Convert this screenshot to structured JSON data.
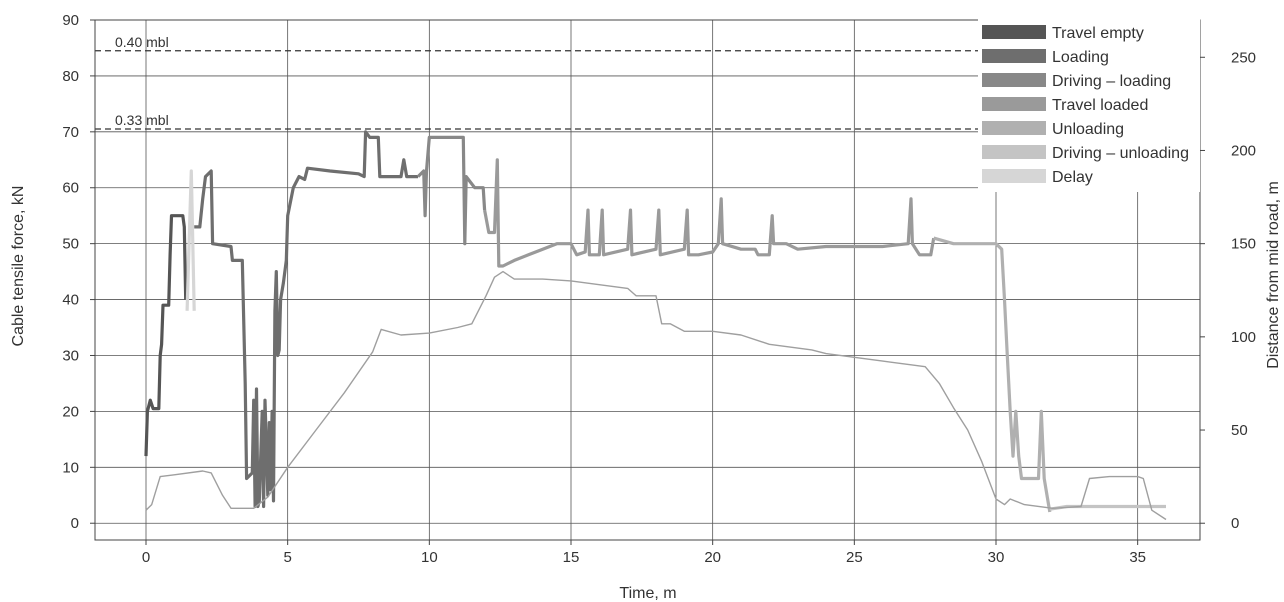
{
  "chart_data": {
    "type": "line",
    "xlabel": "Time, m",
    "ylabel": "Cable tensile force, kN",
    "y2label": "Distance from mid road, m",
    "xlim": [
      -1.8,
      37.2
    ],
    "ylim": [
      -3,
      90
    ],
    "y2lim": [
      -9,
      270
    ],
    "x_ticks": [
      0,
      5,
      10,
      15,
      20,
      25,
      30,
      35
    ],
    "y_ticks": [
      0,
      10,
      20,
      30,
      40,
      50,
      60,
      70,
      80,
      90
    ],
    "y2_ticks": [
      0,
      50,
      100,
      150,
      200,
      250
    ],
    "grid": true,
    "legend_position": "top-right",
    "reference_lines": [
      {
        "label": "0.40 mbl",
        "y": 84.5
      },
      {
        "label": "0.33 mbl",
        "y": 70.5
      }
    ],
    "series": [
      {
        "name": "Travel empty",
        "color": "#555555",
        "axis": "left",
        "points": [
          [
            0.0,
            12
          ],
          [
            0.05,
            20
          ],
          [
            0.15,
            22
          ],
          [
            0.25,
            20.5
          ],
          [
            0.45,
            20.5
          ],
          [
            0.5,
            30
          ],
          [
            0.55,
            32
          ],
          [
            0.6,
            39
          ],
          [
            0.8,
            39
          ],
          [
            0.85,
            48
          ],
          [
            0.9,
            55
          ],
          [
            1.3,
            55
          ],
          [
            1.35,
            53
          ],
          [
            1.4,
            40
          ]
        ]
      },
      {
        "name": "Loading",
        "color": "#6e6e6e",
        "axis": "left",
        "points": [
          [
            1.7,
            53
          ],
          [
            1.9,
            53
          ],
          [
            2.0,
            58
          ],
          [
            2.1,
            62
          ],
          [
            2.3,
            63
          ],
          [
            2.35,
            50
          ],
          [
            3.0,
            49.5
          ],
          [
            3.05,
            47
          ],
          [
            3.4,
            47
          ],
          [
            3.5,
            25
          ],
          [
            3.55,
            8
          ],
          [
            3.75,
            9
          ],
          [
            3.8,
            22
          ],
          [
            3.85,
            3
          ],
          [
            3.9,
            24
          ],
          [
            3.95,
            3
          ],
          [
            4.0,
            4
          ],
          [
            4.1,
            20
          ],
          [
            4.15,
            3
          ],
          [
            4.2,
            22
          ],
          [
            4.3,
            5
          ],
          [
            4.35,
            18
          ],
          [
            4.4,
            6
          ],
          [
            4.45,
            20
          ],
          [
            4.5,
            4
          ],
          [
            4.55,
            38
          ],
          [
            4.6,
            45
          ],
          [
            4.65,
            30
          ],
          [
            4.7,
            31
          ],
          [
            4.75,
            40
          ],
          [
            4.85,
            43
          ],
          [
            4.95,
            47
          ],
          [
            5.0,
            55
          ],
          [
            5.2,
            60
          ],
          [
            5.4,
            62
          ],
          [
            5.6,
            61.5
          ],
          [
            5.7,
            63.5
          ],
          [
            6.5,
            63
          ],
          [
            7.5,
            62.5
          ],
          [
            7.7,
            62
          ],
          [
            7.75,
            70
          ],
          [
            7.9,
            69
          ],
          [
            8.2,
            69
          ],
          [
            8.25,
            62
          ],
          [
            9.0,
            62
          ],
          [
            9.1,
            65
          ],
          [
            9.2,
            62
          ],
          [
            9.6,
            62
          ]
        ]
      },
      {
        "name": "Driving – loading",
        "color": "#888888",
        "axis": "left",
        "points": [
          [
            9.6,
            62
          ],
          [
            9.8,
            63
          ],
          [
            9.85,
            55
          ],
          [
            9.9,
            63
          ],
          [
            10.0,
            69
          ],
          [
            10.5,
            69
          ],
          [
            11.2,
            69
          ],
          [
            11.25,
            50
          ],
          [
            11.3,
            62
          ],
          [
            11.6,
            60
          ],
          [
            11.9,
            60
          ],
          [
            11.95,
            56
          ]
        ]
      },
      {
        "name": "Travel loaded",
        "color": "#9a9a9a",
        "axis": "left",
        "points": [
          [
            11.95,
            56
          ],
          [
            12.1,
            52
          ],
          [
            12.3,
            52
          ],
          [
            12.4,
            65
          ],
          [
            12.45,
            46
          ],
          [
            12.6,
            46
          ],
          [
            13.0,
            47
          ],
          [
            13.5,
            48
          ],
          [
            14.0,
            49
          ],
          [
            14.5,
            50
          ],
          [
            15.0,
            50
          ],
          [
            15.2,
            48
          ],
          [
            15.5,
            48.5
          ],
          [
            15.6,
            56
          ],
          [
            15.65,
            48
          ],
          [
            16.0,
            48
          ],
          [
            16.1,
            56
          ],
          [
            16.15,
            48
          ],
          [
            17.0,
            49
          ],
          [
            17.1,
            56
          ],
          [
            17.15,
            48
          ],
          [
            18.0,
            49
          ],
          [
            18.1,
            56
          ],
          [
            18.15,
            48
          ],
          [
            19.0,
            49
          ],
          [
            19.1,
            56
          ],
          [
            19.15,
            48
          ],
          [
            19.5,
            48
          ],
          [
            20.0,
            48.5
          ],
          [
            20.2,
            50
          ],
          [
            20.3,
            58
          ],
          [
            20.35,
            50
          ],
          [
            21.0,
            49
          ],
          [
            21.5,
            49
          ],
          [
            21.6,
            48
          ],
          [
            22.0,
            48
          ],
          [
            22.1,
            55
          ],
          [
            22.15,
            50
          ],
          [
            22.6,
            50
          ],
          [
            23.0,
            49
          ],
          [
            24.0,
            49.5
          ],
          [
            25.0,
            49.5
          ],
          [
            26.0,
            49.5
          ],
          [
            26.9,
            50
          ],
          [
            27.0,
            58
          ],
          [
            27.05,
            50
          ],
          [
            27.3,
            48
          ],
          [
            27.7,
            48
          ],
          [
            27.8,
            51
          ]
        ]
      },
      {
        "name": "Unloading",
        "color": "#b0b0b0",
        "axis": "left",
        "points": [
          [
            27.8,
            51
          ],
          [
            28.5,
            50
          ],
          [
            29.5,
            50
          ],
          [
            30.0,
            50
          ],
          [
            30.2,
            49
          ],
          [
            30.3,
            40
          ],
          [
            30.4,
            30
          ],
          [
            30.5,
            20
          ],
          [
            30.6,
            12
          ],
          [
            30.7,
            20
          ],
          [
            30.8,
            12
          ],
          [
            30.9,
            8
          ],
          [
            31.5,
            8
          ],
          [
            31.6,
            20
          ],
          [
            31.7,
            8
          ],
          [
            31.8,
            5
          ],
          [
            31.9,
            2
          ]
        ]
      },
      {
        "name": "Driving – unloading",
        "color": "#c4c4c4",
        "axis": "left",
        "points": [
          [
            31.9,
            2.5
          ],
          [
            32.5,
            3
          ],
          [
            33.5,
            3
          ],
          [
            34.5,
            3
          ],
          [
            35.5,
            3
          ],
          [
            36.0,
            3
          ]
        ]
      },
      {
        "name": "Delay",
        "color": "#d6d6d6",
        "axis": "left",
        "points": [
          [
            1.45,
            38
          ],
          [
            1.55,
            55
          ],
          [
            1.6,
            63
          ],
          [
            1.65,
            50
          ],
          [
            1.7,
            38
          ]
        ]
      },
      {
        "name": "",
        "color": "#9f9f9f",
        "axis": "right",
        "points": [
          [
            0,
            7
          ],
          [
            0.2,
            10
          ],
          [
            0.5,
            25
          ],
          [
            1.0,
            26
          ],
          [
            2.0,
            28
          ],
          [
            2.3,
            27
          ],
          [
            2.7,
            15
          ],
          [
            3.0,
            8
          ],
          [
            3.8,
            8
          ],
          [
            4.3,
            14
          ],
          [
            5.0,
            30
          ],
          [
            6.0,
            50
          ],
          [
            7.0,
            70
          ],
          [
            8.0,
            92
          ],
          [
            8.3,
            104
          ],
          [
            9.0,
            101
          ],
          [
            10.0,
            102
          ],
          [
            11.0,
            105
          ],
          [
            11.5,
            107
          ],
          [
            12.0,
            122
          ],
          [
            12.3,
            132
          ],
          [
            12.6,
            135
          ],
          [
            13.0,
            131
          ],
          [
            14.0,
            131
          ],
          [
            15.0,
            130
          ],
          [
            16.0,
            128
          ],
          [
            17.0,
            126
          ],
          [
            17.3,
            122
          ],
          [
            18.0,
            122
          ],
          [
            18.2,
            107
          ],
          [
            18.5,
            107
          ],
          [
            19.0,
            103
          ],
          [
            20.0,
            103
          ],
          [
            21.0,
            101
          ],
          [
            22.0,
            96
          ],
          [
            23.5,
            93
          ],
          [
            24.0,
            91
          ],
          [
            25.0,
            89
          ],
          [
            26.0,
            87
          ],
          [
            27.0,
            85
          ],
          [
            27.5,
            84
          ],
          [
            28.0,
            75
          ],
          [
            28.5,
            62
          ],
          [
            29.0,
            50
          ],
          [
            29.5,
            33
          ],
          [
            30.0,
            13
          ],
          [
            30.3,
            10
          ],
          [
            30.5,
            13
          ],
          [
            31.0,
            10
          ],
          [
            32.0,
            8
          ],
          [
            33.0,
            9
          ],
          [
            33.3,
            24
          ],
          [
            34.0,
            25
          ],
          [
            35.0,
            25
          ],
          [
            35.2,
            24
          ],
          [
            35.5,
            7
          ],
          [
            36.0,
            2
          ]
        ]
      }
    ]
  }
}
